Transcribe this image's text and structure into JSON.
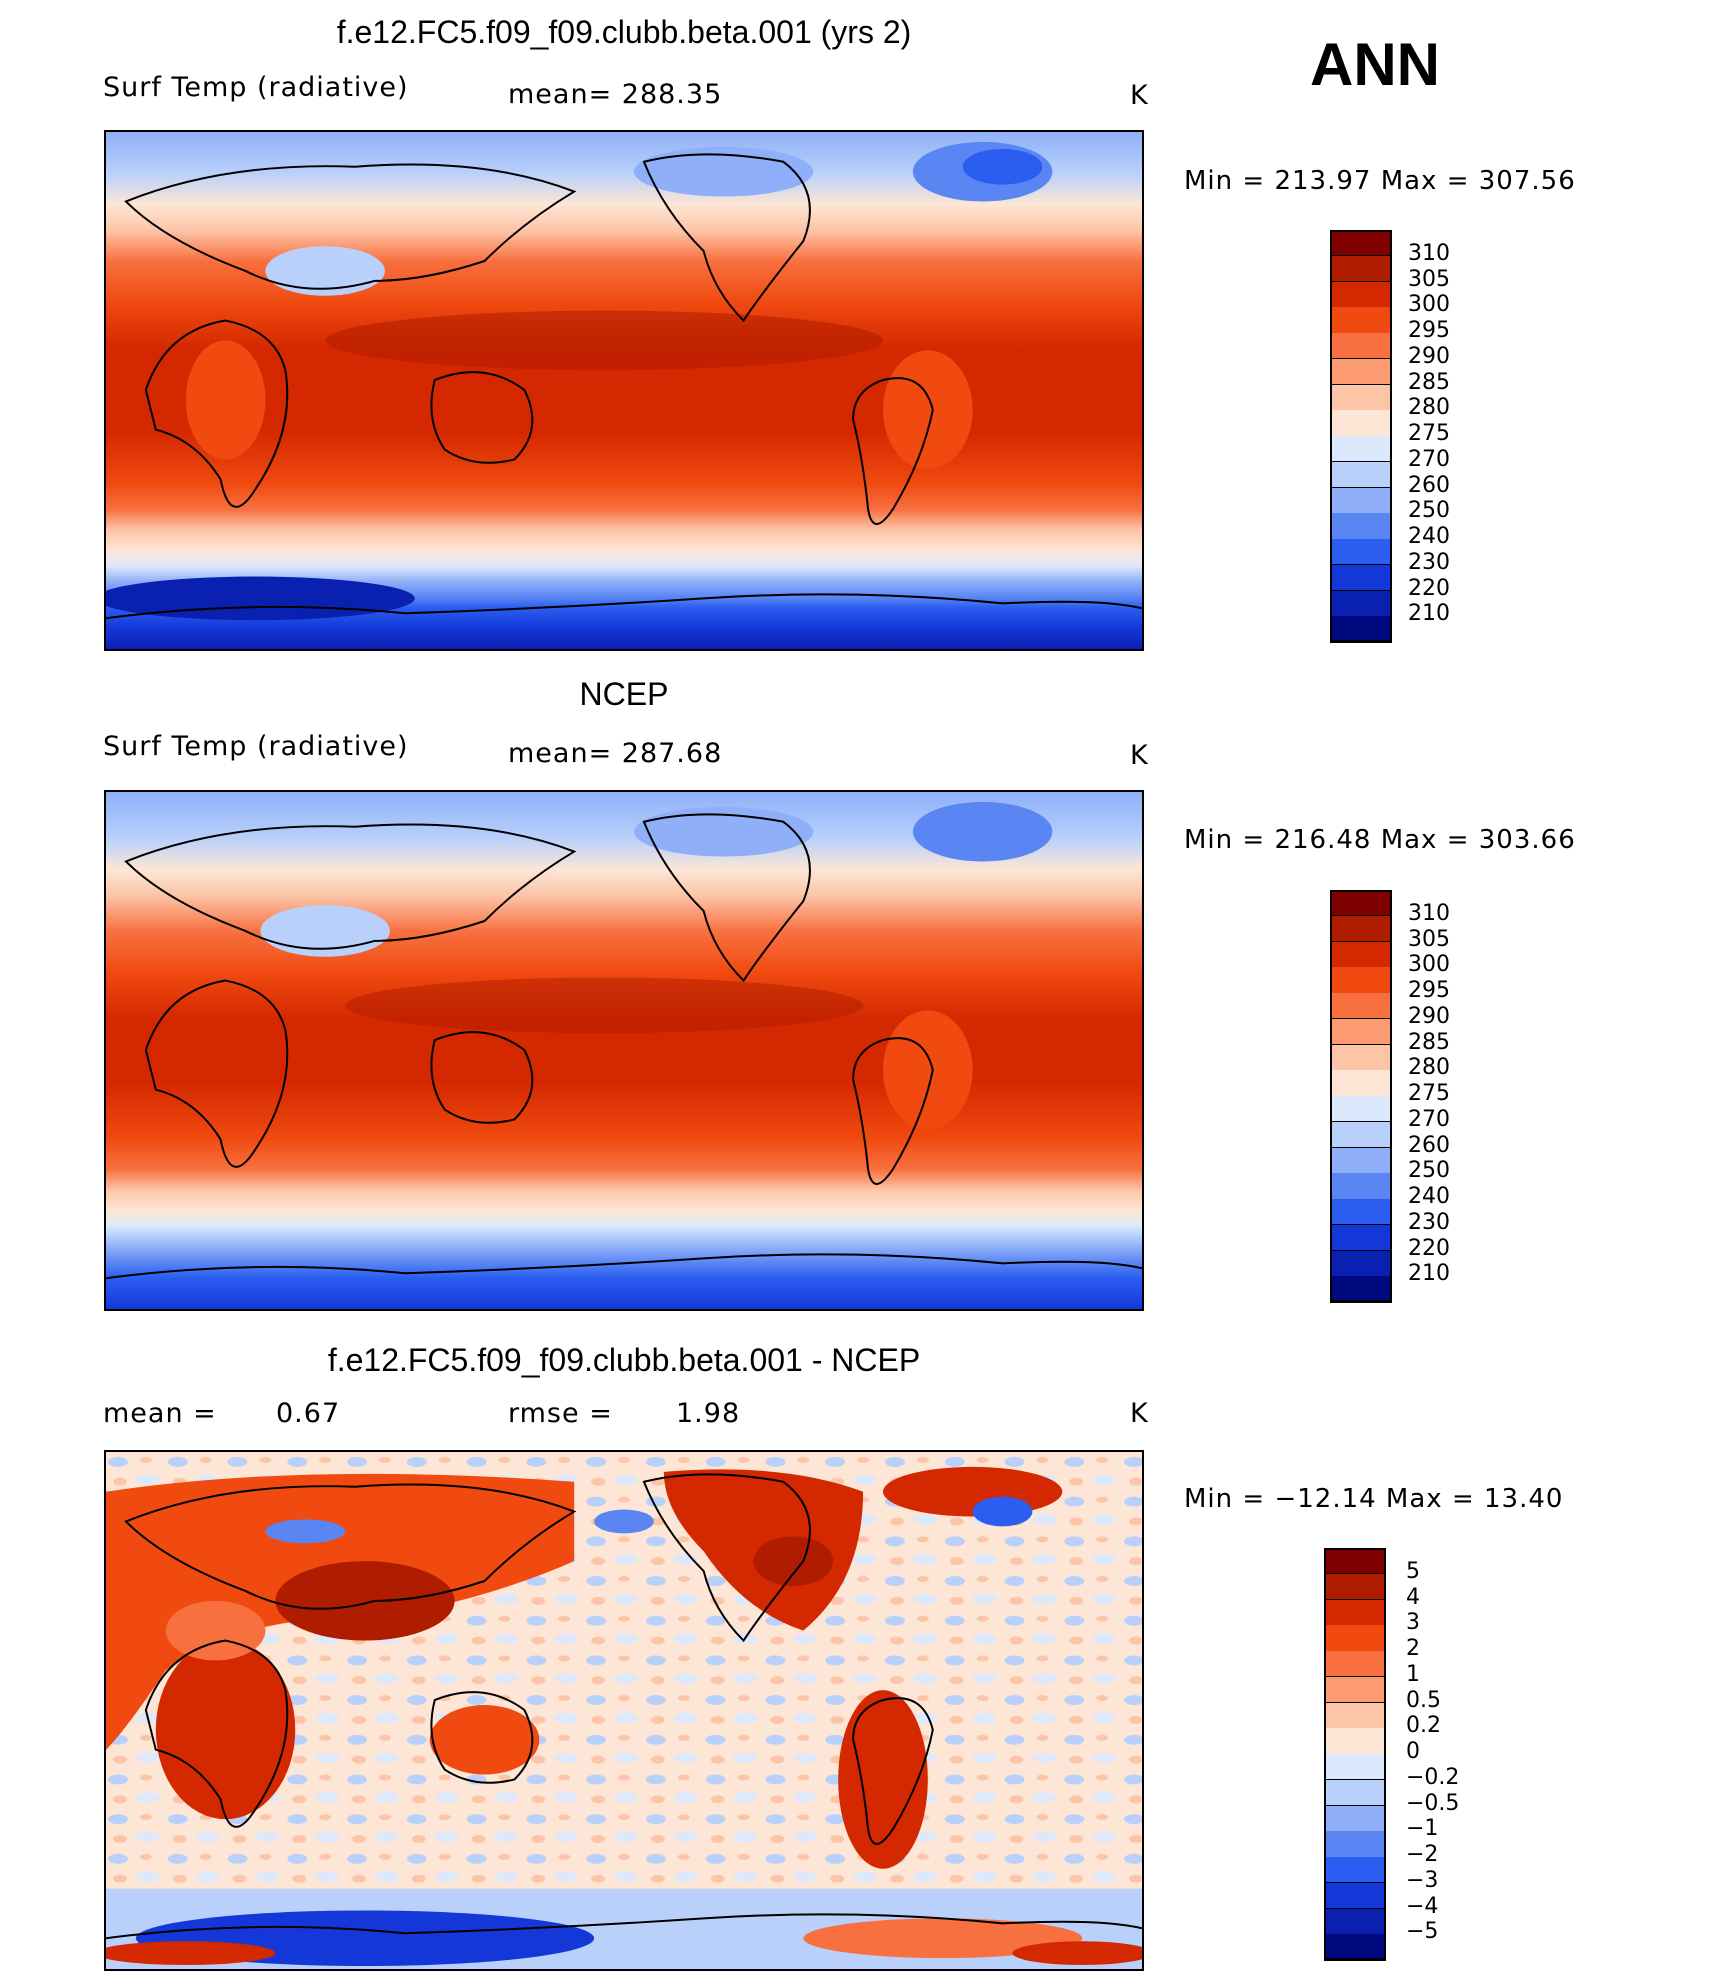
{
  "season": "ANN",
  "panels": [
    {
      "title": "f.e12.FC5.f09_f09.clubb.beta.001 (yrs 2)",
      "left_label": "Surf Temp (radiative)",
      "mid_label": "mean= 288.35",
      "unit": "K",
      "minmax": "Min = 213.97 Max = 307.56",
      "colorbar": [
        "310",
        "305",
        "300",
        "295",
        "290",
        "285",
        "280",
        "275",
        "270",
        "260",
        "250",
        "240",
        "230",
        "220",
        "210"
      ]
    },
    {
      "title": "NCEP",
      "left_label": "Surf Temp (radiative)",
      "mid_label": "mean= 287.68",
      "unit": "K",
      "minmax": "Min = 216.48 Max = 303.66",
      "colorbar": [
        "310",
        "305",
        "300",
        "295",
        "290",
        "285",
        "280",
        "275",
        "270",
        "260",
        "250",
        "240",
        "230",
        "220",
        "210"
      ]
    },
    {
      "title": "f.e12.FC5.f09_f09.clubb.beta.001 - NCEP",
      "left_label": "mean =",
      "left_value": "0.67",
      "mid_label": "rmse =",
      "mid_value": "1.98",
      "unit": "K",
      "minmax": "Min = −12.14 Max =  13.40",
      "colorbar": [
        "5",
        "4",
        "3",
        "2",
        "1",
        "0.5",
        "0.2",
        "0",
        "−0.2",
        "−0.5",
        "−1",
        "−2",
        "−3",
        "−4",
        "−5"
      ]
    }
  ],
  "colors": {
    "abs_scale": [
      "#800000",
      "#b01c00",
      "#d42800",
      "#f04a10",
      "#f87040",
      "#fc9a72",
      "#fcc5a8",
      "#fde6d6",
      "#dce8fc",
      "#b9d0fb",
      "#8fb0f8",
      "#5a86f4",
      "#2b5ef0",
      "#1438d8",
      "#0a20b0",
      "#000a80"
    ],
    "diff_scale": [
      "#800000",
      "#b01c00",
      "#d42800",
      "#f04a10",
      "#f87040",
      "#fc9a72",
      "#fcc5a8",
      "#fde6d6",
      "#dce8fc",
      "#b9d0fb",
      "#8fb0f8",
      "#5a86f4",
      "#2b5ef0",
      "#1438d8",
      "#0a20b0",
      "#000a80"
    ]
  }
}
